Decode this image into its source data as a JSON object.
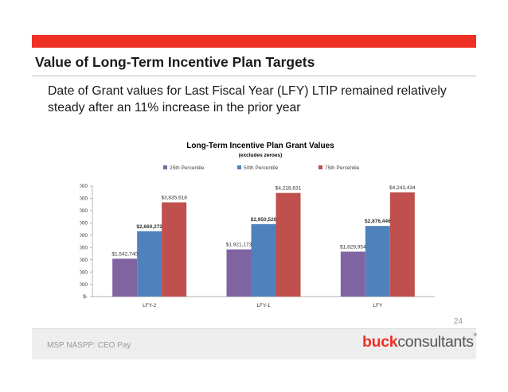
{
  "slide": {
    "title": "Value of Long-Term Incentive Plan Targets",
    "subtitle": "Date of Grant values for Last Fiscal Year (LFY) LTIP remained relatively steady after an 11% increase in the prior year",
    "page_number": "24",
    "footer": "MSP NASPP: CEO Pay",
    "logo_buck": "buck",
    "logo_rest": "consultants",
    "logo_mark": "®"
  },
  "colors": {
    "accent_red": "#ee3124",
    "p25": "#8064a2",
    "p50": "#4f81bd",
    "p75": "#c0504d"
  },
  "chart_data": {
    "type": "bar",
    "title": "Long-Term Incentive Plan Grant Values",
    "subtitle": "(excludes zeroes)",
    "categories": [
      "LFY-2",
      "LFY-1",
      "LFY"
    ],
    "series": [
      {
        "name": "25th Percentile",
        "values": [
          1542740,
          1921173,
          1829954
        ],
        "labels": [
          "$1,542,740",
          "$1,921,173",
          "$1,829,954"
        ],
        "color": "#8064a2",
        "bold": false
      },
      {
        "name": "50th Percentile",
        "values": [
          2660272,
          2950520,
          2876446
        ],
        "labels": [
          "$2,660,272",
          "$2,950,520",
          "$2,876,446"
        ],
        "color": "#4f81bd",
        "bold": true
      },
      {
        "name": "75th Percentile",
        "values": [
          3835618,
          4218631,
          4243434
        ],
        "labels": [
          "$3,835,618",
          "$4,218,631",
          "$4,243,434"
        ],
        "color": "#c0504d",
        "bold": false
      }
    ],
    "ylim": [
      0,
      4500000
    ],
    "yticks": [
      0,
      500000,
      1000000,
      1500000,
      2000000,
      2500000,
      3000000,
      3500000,
      4000000,
      4500000
    ],
    "ytick_labels": [
      "$-",
      "$500,000",
      "$1,000,000",
      "$1,500,000",
      "$2,000,000",
      "$2,500,000",
      "$3,000,000",
      "$3,500,000",
      "$4,000,000",
      "$4,500,000"
    ],
    "grid": false,
    "legend": "top"
  }
}
